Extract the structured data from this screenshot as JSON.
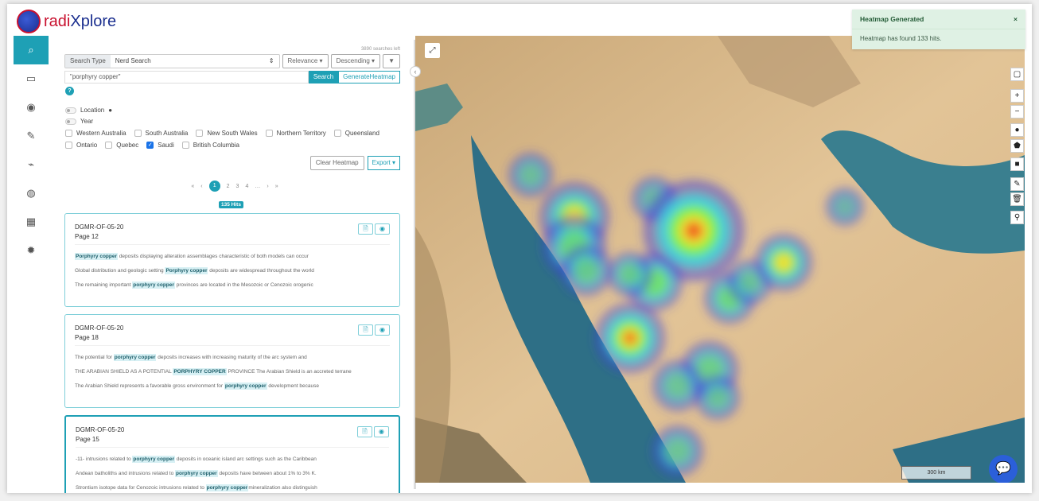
{
  "app": {
    "logo_prefix": "radi",
    "logo_suffix": "Xplore"
  },
  "sidebar": {
    "items": [
      {
        "icon": "search-icon",
        "glyph": "⌕"
      },
      {
        "icon": "book-icon",
        "glyph": "▭"
      },
      {
        "icon": "eye-icon",
        "glyph": "◉"
      },
      {
        "icon": "pencil-icon",
        "glyph": "✎"
      },
      {
        "icon": "chart-icon",
        "glyph": "⌁"
      },
      {
        "icon": "globe-icon",
        "glyph": "◍"
      },
      {
        "icon": "grid-icon",
        "glyph": "▦"
      },
      {
        "icon": "gear-icon",
        "glyph": "✹"
      }
    ]
  },
  "search": {
    "searches_left": "3890 searches left",
    "type_label": "Search Type",
    "type_value": "Nerd Search",
    "sort": "Relevance ▾",
    "order": "Descending ▾",
    "query": "\"porphyry copper\"",
    "search_btn": "Search",
    "heatmap_btn": "GenerateHeatmap"
  },
  "toggles": [
    {
      "label": "Location",
      "on": false
    },
    {
      "label": "Year",
      "on": false
    }
  ],
  "regions": [
    [
      {
        "label": "Western Australia",
        "checked": false
      },
      {
        "label": "South Australia",
        "checked": false
      },
      {
        "label": "New South Wales",
        "checked": false
      },
      {
        "label": "Northern Territory",
        "checked": false
      },
      {
        "label": "Queensland",
        "checked": false
      }
    ],
    [
      {
        "label": "Ontario",
        "checked": false
      },
      {
        "label": "Quebec",
        "checked": false
      },
      {
        "label": "Saudi",
        "checked": true
      },
      {
        "label": "British Columbia",
        "checked": false
      }
    ]
  ],
  "actions": {
    "clear": "Clear Heatmap",
    "export": "Export ▾"
  },
  "pagination": {
    "items": [
      "«",
      "‹",
      "1",
      "2",
      "3",
      "4",
      "…",
      "›",
      "»"
    ],
    "current": "1"
  },
  "hits": "135 Hits",
  "results": [
    {
      "doc": "DGMR-OF-05-20",
      "page": "Page 12",
      "lines": [
        [
          "",
          "Porphyry copper",
          " deposits displaying alteration assemblages characteristic of both models can occur"
        ],
        [
          "Global distribution and geologic setting ",
          "Porphyry copper",
          " deposits are widespread throughout the world"
        ],
        [
          "The remaining important ",
          "porphyry copper",
          " provinces are located in the Mesozoic or Cenozoic orogenic"
        ]
      ]
    },
    {
      "doc": "DGMR-OF-05-20",
      "page": "Page 18",
      "lines": [
        [
          "The potential for ",
          "porphyry copper",
          " deposits increases with increasing maturity of the arc system and"
        ],
        [
          "THE ARABIAN SHIELD AS A POTENTIAL ",
          "PORPHYRY COPPER",
          " PROVINCE The Arabian Shield is an accreted terrane"
        ],
        [
          "The Arabian Shield represents a favorable gross environment for ",
          "porphyry copper",
          " development because"
        ]
      ]
    },
    {
      "doc": "DGMR-OF-05-20",
      "page": "Page 15",
      "lines": [
        [
          "-11- intrusions related to ",
          "porphyry copper",
          " deposits in oceanic island arc settings such as the Caribbean"
        ],
        [
          "Andean batholiths and intrusions related to ",
          "porphyry copper",
          " deposits have between about 1% to 3% K."
        ],
        [
          "Strontium isotope data for Cenozoic intrusions related to ",
          "porphyry copper",
          "mineralization also distinguish"
        ]
      ]
    }
  ],
  "toast": {
    "title": "Heatmap Generated",
    "message": "Heatmap has found 133 hits.",
    "close": "×"
  },
  "map": {
    "scale": "300 km",
    "controls": [
      "▢",
      "+",
      "−",
      "●",
      "⬟",
      "■",
      "✎",
      "🗑",
      "⚲"
    ]
  },
  "colors": {
    "accent": "#1ea0b5",
    "toast_bg": "#dff1e4"
  }
}
